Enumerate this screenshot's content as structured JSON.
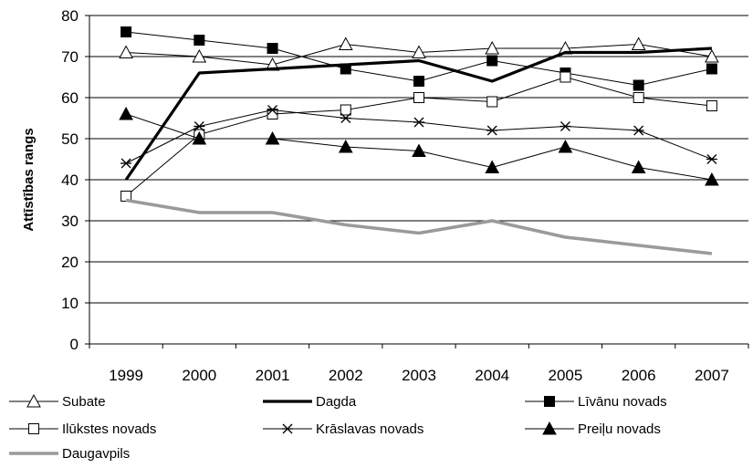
{
  "chart_data": {
    "type": "line",
    "title": "",
    "xlabel": "",
    "ylabel": "Attīstības rangs",
    "categories": [
      "1999",
      "2000",
      "2001",
      "2002",
      "2003",
      "2004",
      "2005",
      "2006",
      "2007"
    ],
    "ylim": [
      0,
      80
    ],
    "yticks": [
      0,
      10,
      20,
      30,
      40,
      50,
      60,
      70,
      80
    ],
    "grid": "horizontal",
    "legend_position": "bottom",
    "series": [
      {
        "name": "Subate",
        "marker": "triangle-open",
        "color": "#000000",
        "values": [
          71,
          70,
          68,
          73,
          71,
          72,
          72,
          73,
          70
        ]
      },
      {
        "name": "Dagda",
        "marker": "none",
        "line": "thick",
        "color": "#000000",
        "values": [
          40,
          66,
          67,
          68,
          69,
          64,
          71,
          71,
          72
        ]
      },
      {
        "name": "Līvānu novads",
        "marker": "square-filled",
        "color": "#000000",
        "values": [
          76,
          74,
          72,
          67,
          64,
          69,
          66,
          63,
          67
        ]
      },
      {
        "name": "Ilūkstes novads",
        "marker": "square-open",
        "color": "#000000",
        "values": [
          36,
          51,
          56,
          57,
          60,
          59,
          65,
          60,
          58
        ]
      },
      {
        "name": "Krāslavas novads",
        "marker": "asterisk",
        "color": "#000000",
        "values": [
          44,
          53,
          57,
          55,
          54,
          52,
          53,
          52,
          45
        ]
      },
      {
        "name": "Preiļu novads",
        "marker": "triangle-filled",
        "color": "#000000",
        "values": [
          56,
          50,
          50,
          48,
          47,
          43,
          48,
          43,
          40
        ]
      },
      {
        "name": "Daugavpils",
        "marker": "none",
        "line": "thick-gray",
        "color": "#999999",
        "values": [
          35,
          32,
          32,
          29,
          27,
          30,
          26,
          24,
          22
        ]
      }
    ]
  }
}
